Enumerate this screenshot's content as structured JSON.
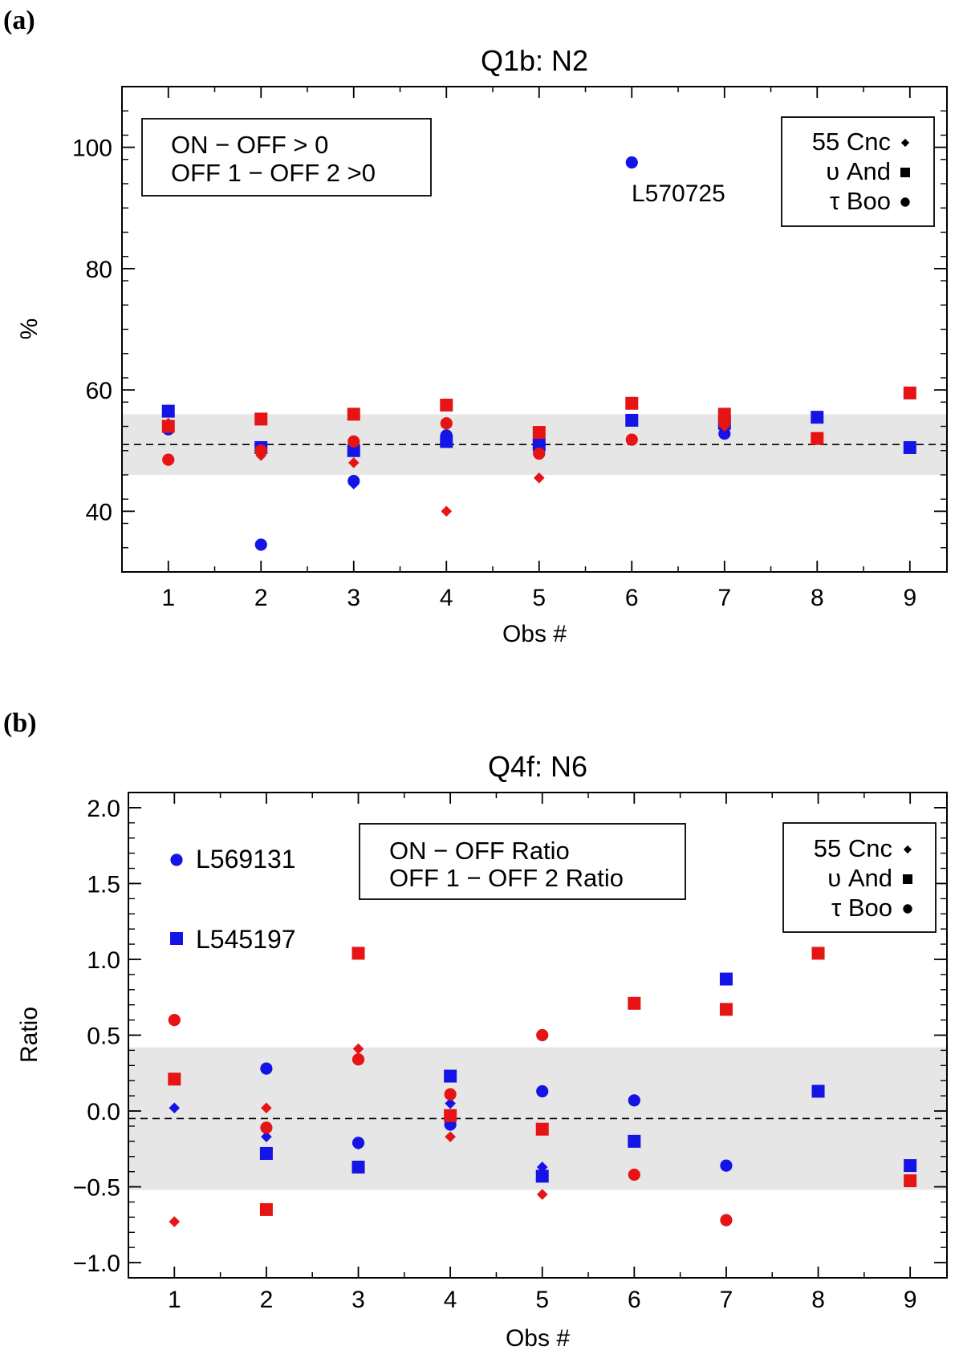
{
  "chart_data": [
    {
      "type": "scatter",
      "panel_label": "(a)",
      "title": "Q1b: N2",
      "xlabel": "Obs #",
      "ylabel": "%",
      "xlim": [
        0.5,
        9.4
      ],
      "ylim": [
        30,
        110
      ],
      "xticks": [
        1,
        2,
        3,
        4,
        5,
        6,
        7,
        8,
        9
      ],
      "yticks": [
        40,
        60,
        80,
        100
      ],
      "grid": false,
      "mean_line": 51,
      "shaded_band": [
        46,
        56
      ],
      "legend_color": {
        "placement": "top-left",
        "entries": [
          {
            "label": "ON − OFF > 0",
            "color": "#1414e6"
          },
          {
            "label": "OFF 1 − OFF 2 >0",
            "color": "#e61414"
          }
        ]
      },
      "legend_marker": {
        "placement": "top-right",
        "entries": [
          {
            "label": "55 Cnc",
            "marker": "diamond"
          },
          {
            "label": "υ And",
            "marker": "square"
          },
          {
            "label": "τ Boo",
            "marker": "circle"
          }
        ]
      },
      "annotations": [
        {
          "text": "L570725",
          "x": 6.0,
          "y": 93.5
        }
      ],
      "series": [
        {
          "color": "blue",
          "marker": "diamond",
          "points": [
            [
              1,
              54
            ],
            [
              2,
              49.5
            ],
            [
              3,
              44.5
            ],
            [
              4,
              52
            ],
            [
              5,
              50
            ],
            [
              7,
              54.5
            ]
          ]
        },
        {
          "color": "blue",
          "marker": "square",
          "points": [
            [
              1,
              56.5
            ],
            [
              2,
              50.5
            ],
            [
              3,
              50
            ],
            [
              4,
              51.5
            ],
            [
              5,
              51
            ],
            [
              6,
              55
            ],
            [
              7,
              54.5
            ],
            [
              8,
              55.5
            ],
            [
              9,
              50.5
            ]
          ]
        },
        {
          "color": "blue",
          "marker": "circle",
          "points": [
            [
              1,
              53.5
            ],
            [
              2,
              34.5
            ],
            [
              3,
              45
            ],
            [
              4,
              52.5
            ],
            [
              5,
              50
            ],
            [
              6,
              97.5
            ],
            [
              7,
              52.8
            ]
          ]
        },
        {
          "color": "red",
          "marker": "diamond",
          "points": [
            [
              1,
              54.5
            ],
            [
              2,
              49.2
            ],
            [
              3,
              48
            ],
            [
              4,
              40
            ],
            [
              5,
              45.5
            ],
            [
              7,
              54
            ]
          ]
        },
        {
          "color": "red",
          "marker": "square",
          "points": [
            [
              1,
              54
            ],
            [
              2,
              55.2
            ],
            [
              3,
              56
            ],
            [
              4,
              57.5
            ],
            [
              5,
              53
            ],
            [
              6,
              57.8
            ],
            [
              7,
              56
            ],
            [
              8,
              52
            ],
            [
              9,
              59.5
            ]
          ]
        },
        {
          "color": "red",
          "marker": "circle",
          "points": [
            [
              1,
              48.5
            ],
            [
              2,
              50
            ],
            [
              3,
              51.5
            ],
            [
              4,
              54.5
            ],
            [
              5,
              49.5
            ],
            [
              6,
              51.8
            ],
            [
              7,
              54.5
            ]
          ]
        }
      ]
    },
    {
      "type": "scatter",
      "panel_label": "(b)",
      "title": "Q4f: N6",
      "xlabel": "Obs #",
      "ylabel": "Ratio",
      "xlim": [
        0.5,
        9.4
      ],
      "ylim": [
        -1.1,
        2.1
      ],
      "xticks": [
        1,
        2,
        3,
        4,
        5,
        6,
        7,
        8,
        9
      ],
      "yticks": [
        -1.0,
        -0.5,
        0.0,
        0.5,
        1.0,
        1.5,
        2.0
      ],
      "ytick_labels": [
        "−1.0",
        "−0.5",
        "0.0",
        "0.5",
        "1.0",
        "1.5",
        "2.0"
      ],
      "grid": false,
      "mean_line": -0.05,
      "shaded_band": [
        -0.52,
        0.42
      ],
      "legend_color": {
        "placement": "top-center",
        "entries": [
          {
            "label": "ON − OFF Ratio",
            "color": "#1414e6"
          },
          {
            "label": "OFF 1 − OFF 2 Ratio",
            "color": "#e61414"
          }
        ]
      },
      "legend_marker": {
        "placement": "top-right",
        "entries": [
          {
            "label": "55 Cnc",
            "marker": "diamond"
          },
          {
            "label": "υ And",
            "marker": "square"
          },
          {
            "label": "τ Boo",
            "marker": "circle"
          }
        ]
      },
      "annotations": [
        {
          "text": "L569131",
          "marker": "circle",
          "color": "blue",
          "x": 1.0,
          "y": 1.63
        },
        {
          "text": "L545197",
          "marker": "square",
          "color": "blue",
          "x": 1.0,
          "y": 1.09
        }
      ],
      "series": [
        {
          "color": "blue",
          "marker": "diamond",
          "points": [
            [
              1,
              0.02
            ],
            [
              2,
              -0.17
            ],
            [
              3,
              -0.22
            ],
            [
              4,
              0.05
            ],
            [
              5,
              -0.37
            ]
          ]
        },
        {
          "color": "blue",
          "marker": "square",
          "points": [
            [
              2,
              -0.28
            ],
            [
              3,
              -0.37
            ],
            [
              4,
              0.23
            ],
            [
              5,
              -0.43
            ],
            [
              6,
              -0.2
            ],
            [
              7,
              0.87
            ],
            [
              8,
              0.13
            ],
            [
              9,
              -0.36
            ]
          ]
        },
        {
          "color": "blue",
          "marker": "circle",
          "points": [
            [
              2,
              0.28
            ],
            [
              3,
              -0.21
            ],
            [
              4,
              -0.09
            ],
            [
              5,
              0.13
            ],
            [
              6,
              0.07
            ],
            [
              7,
              -0.36
            ]
          ]
        },
        {
          "color": "red",
          "marker": "diamond",
          "points": [
            [
              1,
              -0.73
            ],
            [
              2,
              0.02
            ],
            [
              3,
              0.41
            ],
            [
              4,
              -0.17
            ],
            [
              5,
              -0.55
            ]
          ]
        },
        {
          "color": "red",
          "marker": "square",
          "points": [
            [
              1,
              0.21
            ],
            [
              2,
              -0.65
            ],
            [
              3,
              1.04
            ],
            [
              4,
              -0.03
            ],
            [
              5,
              -0.12
            ],
            [
              6,
              0.71
            ],
            [
              7,
              0.67
            ],
            [
              8,
              1.04
            ],
            [
              9,
              -0.46
            ]
          ]
        },
        {
          "color": "red",
          "marker": "circle",
          "points": [
            [
              1,
              0.6
            ],
            [
              2,
              -0.11
            ],
            [
              3,
              0.34
            ],
            [
              4,
              0.11
            ],
            [
              5,
              0.5
            ],
            [
              6,
              -0.42
            ],
            [
              7,
              -0.72
            ]
          ]
        }
      ]
    }
  ],
  "colors": {
    "blue": "#1414e6",
    "red": "#e61414",
    "band": "#e6e6e6",
    "axis": "#000000"
  }
}
